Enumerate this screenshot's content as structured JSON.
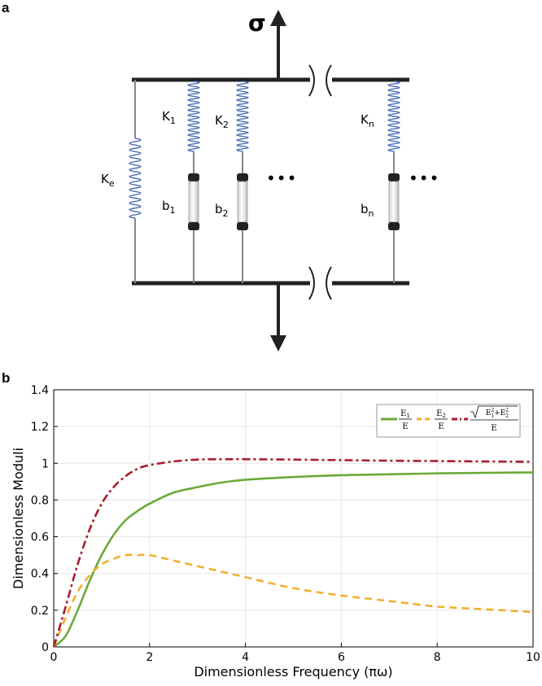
{
  "panel_a": {
    "label": "a",
    "stress": "σ",
    "ke_main": "K",
    "ke_sub": "e",
    "k1_main": "K",
    "k1_sub": "1",
    "k2_main": "K",
    "k2_sub": "2",
    "kn_main": "K",
    "kn_sub": "n",
    "b1_main": "b",
    "b1_sub": "1",
    "b2_main": "b",
    "b2_sub": "2",
    "bn_main": "b",
    "bn_sub": "n",
    "ellipsis": "•••",
    "colors": {
      "spring": "#4a6db5",
      "bar": "#222222",
      "rod": "#888888"
    }
  },
  "panel_b": {
    "label": "b"
  },
  "chart_data": {
    "type": "line",
    "xlabel": "Dimensionless Frequency (πω)",
    "ylabel": "Dimensionless Moduli",
    "xlim": [
      0,
      10
    ],
    "ylim": [
      0,
      1.4
    ],
    "xticks": [
      0,
      2,
      4,
      6,
      8,
      10
    ],
    "yticks": [
      0,
      0.2,
      0.4,
      0.6,
      0.8,
      1,
      1.2,
      1.4
    ],
    "ytick_labels": [
      "0",
      "0.2",
      "0.4",
      "0.6",
      "0.8",
      "1",
      "1.2",
      "1.4"
    ],
    "grid": true,
    "legend_position": "top-right",
    "x": [
      0,
      0.25,
      0.5,
      0.75,
      1,
      1.25,
      1.5,
      1.75,
      2,
      2.5,
      3,
      3.5,
      4,
      5,
      6,
      7,
      8,
      9,
      10
    ],
    "series": [
      {
        "name": "E1/E",
        "color": "#6aaa3a",
        "style": "solid",
        "values": [
          0,
          0.06,
          0.2,
          0.36,
          0.5,
          0.61,
          0.69,
          0.74,
          0.78,
          0.84,
          0.87,
          0.895,
          0.91,
          0.925,
          0.935,
          0.94,
          0.945,
          0.948,
          0.95
        ]
      },
      {
        "name": "E2/E",
        "color": "#f0b030",
        "style": "dashed",
        "values": [
          0,
          0.16,
          0.3,
          0.39,
          0.45,
          0.48,
          0.5,
          0.5,
          0.5,
          0.47,
          0.44,
          0.41,
          0.38,
          0.32,
          0.28,
          0.25,
          0.22,
          0.205,
          0.19
        ]
      },
      {
        "name": "sqrt(E1^2+E2^2)/E",
        "color": "#a81c2c",
        "style": "dashdot",
        "values": [
          0,
          0.22,
          0.45,
          0.64,
          0.78,
          0.87,
          0.93,
          0.97,
          0.99,
          1.01,
          1.02,
          1.022,
          1.022,
          1.02,
          1.017,
          1.014,
          1.012,
          1.01,
          1.008
        ]
      }
    ]
  }
}
